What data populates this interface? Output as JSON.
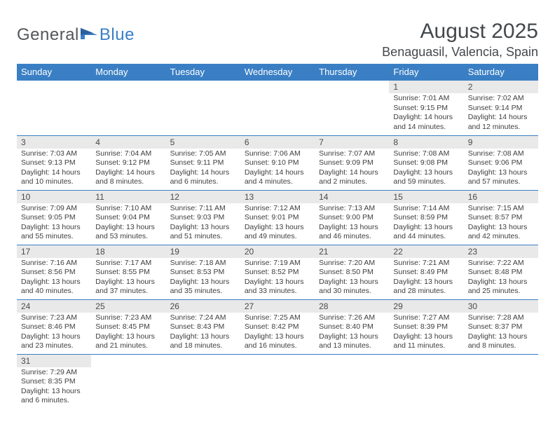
{
  "logo": {
    "part1": "General",
    "part2": "Blue"
  },
  "title": "August 2025",
  "location": "Benaguasil, Valencia, Spain",
  "colors": {
    "accent": "#3a7fc4",
    "header_bg": "#3a7fc4",
    "header_text": "#ffffff",
    "daynum_bg": "#e9e9e9",
    "text": "#333333",
    "logo_gray": "#54575a"
  },
  "weekdays": [
    "Sunday",
    "Monday",
    "Tuesday",
    "Wednesday",
    "Thursday",
    "Friday",
    "Saturday"
  ],
  "weeks": [
    [
      null,
      null,
      null,
      null,
      null,
      {
        "n": "1",
        "sr": "7:01 AM",
        "ss": "9:15 PM",
        "dl": "14 hours and 14 minutes."
      },
      {
        "n": "2",
        "sr": "7:02 AM",
        "ss": "9:14 PM",
        "dl": "14 hours and 12 minutes."
      }
    ],
    [
      {
        "n": "3",
        "sr": "7:03 AM",
        "ss": "9:13 PM",
        "dl": "14 hours and 10 minutes."
      },
      {
        "n": "4",
        "sr": "7:04 AM",
        "ss": "9:12 PM",
        "dl": "14 hours and 8 minutes."
      },
      {
        "n": "5",
        "sr": "7:05 AM",
        "ss": "9:11 PM",
        "dl": "14 hours and 6 minutes."
      },
      {
        "n": "6",
        "sr": "7:06 AM",
        "ss": "9:10 PM",
        "dl": "14 hours and 4 minutes."
      },
      {
        "n": "7",
        "sr": "7:07 AM",
        "ss": "9:09 PM",
        "dl": "14 hours and 2 minutes."
      },
      {
        "n": "8",
        "sr": "7:08 AM",
        "ss": "9:08 PM",
        "dl": "13 hours and 59 minutes."
      },
      {
        "n": "9",
        "sr": "7:08 AM",
        "ss": "9:06 PM",
        "dl": "13 hours and 57 minutes."
      }
    ],
    [
      {
        "n": "10",
        "sr": "7:09 AM",
        "ss": "9:05 PM",
        "dl": "13 hours and 55 minutes."
      },
      {
        "n": "11",
        "sr": "7:10 AM",
        "ss": "9:04 PM",
        "dl": "13 hours and 53 minutes."
      },
      {
        "n": "12",
        "sr": "7:11 AM",
        "ss": "9:03 PM",
        "dl": "13 hours and 51 minutes."
      },
      {
        "n": "13",
        "sr": "7:12 AM",
        "ss": "9:01 PM",
        "dl": "13 hours and 49 minutes."
      },
      {
        "n": "14",
        "sr": "7:13 AM",
        "ss": "9:00 PM",
        "dl": "13 hours and 46 minutes."
      },
      {
        "n": "15",
        "sr": "7:14 AM",
        "ss": "8:59 PM",
        "dl": "13 hours and 44 minutes."
      },
      {
        "n": "16",
        "sr": "7:15 AM",
        "ss": "8:57 PM",
        "dl": "13 hours and 42 minutes."
      }
    ],
    [
      {
        "n": "17",
        "sr": "7:16 AM",
        "ss": "8:56 PM",
        "dl": "13 hours and 40 minutes."
      },
      {
        "n": "18",
        "sr": "7:17 AM",
        "ss": "8:55 PM",
        "dl": "13 hours and 37 minutes."
      },
      {
        "n": "19",
        "sr": "7:18 AM",
        "ss": "8:53 PM",
        "dl": "13 hours and 35 minutes."
      },
      {
        "n": "20",
        "sr": "7:19 AM",
        "ss": "8:52 PM",
        "dl": "13 hours and 33 minutes."
      },
      {
        "n": "21",
        "sr": "7:20 AM",
        "ss": "8:50 PM",
        "dl": "13 hours and 30 minutes."
      },
      {
        "n": "22",
        "sr": "7:21 AM",
        "ss": "8:49 PM",
        "dl": "13 hours and 28 minutes."
      },
      {
        "n": "23",
        "sr": "7:22 AM",
        "ss": "8:48 PM",
        "dl": "13 hours and 25 minutes."
      }
    ],
    [
      {
        "n": "24",
        "sr": "7:23 AM",
        "ss": "8:46 PM",
        "dl": "13 hours and 23 minutes."
      },
      {
        "n": "25",
        "sr": "7:23 AM",
        "ss": "8:45 PM",
        "dl": "13 hours and 21 minutes."
      },
      {
        "n": "26",
        "sr": "7:24 AM",
        "ss": "8:43 PM",
        "dl": "13 hours and 18 minutes."
      },
      {
        "n": "27",
        "sr": "7:25 AM",
        "ss": "8:42 PM",
        "dl": "13 hours and 16 minutes."
      },
      {
        "n": "28",
        "sr": "7:26 AM",
        "ss": "8:40 PM",
        "dl": "13 hours and 13 minutes."
      },
      {
        "n": "29",
        "sr": "7:27 AM",
        "ss": "8:39 PM",
        "dl": "13 hours and 11 minutes."
      },
      {
        "n": "30",
        "sr": "7:28 AM",
        "ss": "8:37 PM",
        "dl": "13 hours and 8 minutes."
      }
    ],
    [
      {
        "n": "31",
        "sr": "7:29 AM",
        "ss": "8:35 PM",
        "dl": "13 hours and 6 minutes."
      },
      null,
      null,
      null,
      null,
      null,
      null
    ]
  ],
  "labels": {
    "sunrise": "Sunrise:",
    "sunset": "Sunset:",
    "daylight": "Daylight:"
  },
  "typography": {
    "title_fontsize": 30,
    "location_fontsize": 18,
    "weekday_fontsize": 13,
    "daynum_fontsize": 12,
    "body_fontsize": 10.5
  }
}
